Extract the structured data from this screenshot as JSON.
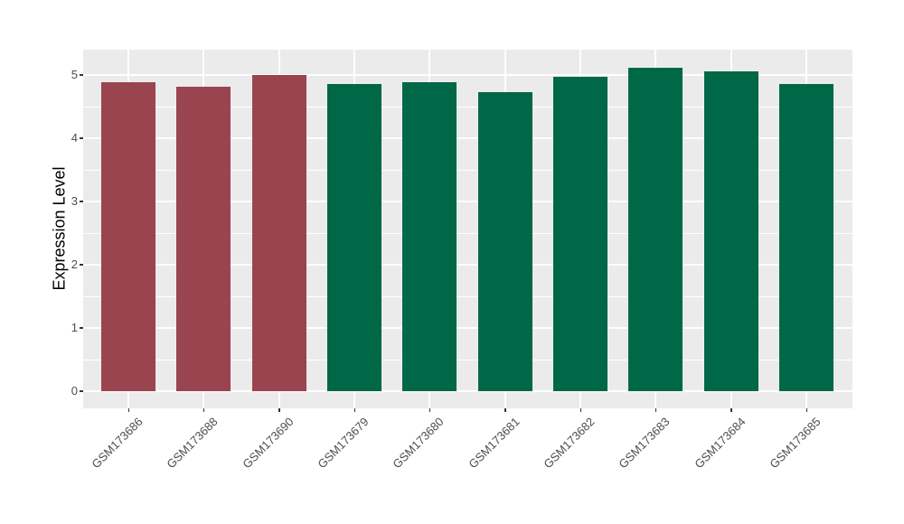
{
  "chart_data": {
    "type": "bar",
    "title": "",
    "xlabel": "",
    "ylabel": "Expression Level",
    "categories": [
      "GSM173686",
      "GSM173688",
      "GSM173690",
      "GSM173679",
      "GSM173680",
      "GSM173681",
      "GSM173682",
      "GSM173683",
      "GSM173684",
      "GSM173685"
    ],
    "values": [
      4.88,
      4.82,
      5.0,
      4.86,
      4.88,
      4.73,
      4.97,
      5.12,
      5.05,
      4.85
    ],
    "bar_colors": [
      "#9A4450",
      "#9A4450",
      "#9A4450",
      "#006747",
      "#006747",
      "#006747",
      "#006747",
      "#006747",
      "#006747",
      "#006747"
    ],
    "group_colors": {
      "left-red-group": "#9A4450",
      "right-green-group": "#006747"
    },
    "y_ticks": [
      0,
      1,
      2,
      3,
      4,
      5
    ],
    "y_minor_ticks": [
      0.5,
      1.5,
      2.5,
      3.5,
      4.5
    ],
    "ylim": [
      -0.27,
      5.4
    ],
    "legend": "none",
    "grid": "horizontal major+minor and vertical major, white on grey panel",
    "panel_background": "#EBEBEB",
    "grid_color": "#FFFFFF",
    "tick_label_color": "#4D4D4D",
    "axis_title_color": "#000000"
  }
}
